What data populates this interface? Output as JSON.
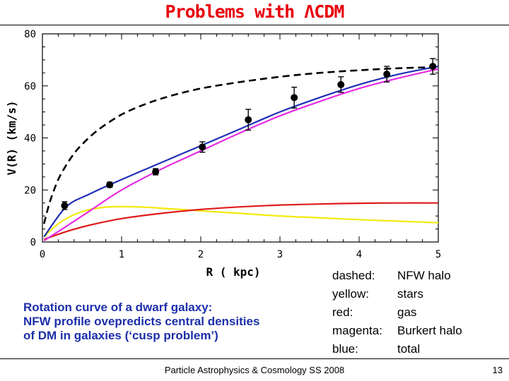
{
  "slide": {
    "title": "Problems with ΛCDM",
    "caption": [
      "Rotation curve of a dwarf galaxy:",
      "NFW profile ovepredicts central densities",
      "of DM in galaxies (‘cusp problem’)"
    ],
    "legend": [
      {
        "key": "dashed:",
        "desc": "NFW halo"
      },
      {
        "key": "yellow:",
        "desc": "stars"
      },
      {
        "key": "red:",
        "desc": "gas"
      },
      {
        "key": "magenta:",
        "desc": "Burkert halo"
      },
      {
        "key": "blue:",
        "desc": "total"
      }
    ],
    "footer": "Particle Astrophysics & Cosmology SS 2008",
    "page_number": "13",
    "colors": {
      "title": "#e8000d",
      "caption": "#1c2fa8"
    }
  },
  "chart_data": {
    "type": "line",
    "title": "",
    "xlabel": "R ( kpc)",
    "ylabel": "V(R)  (km/s)",
    "xlim": [
      0,
      5
    ],
    "ylim": [
      0,
      80
    ],
    "xticks": [
      0,
      1,
      2,
      3,
      4,
      5
    ],
    "yticks": [
      0,
      20,
      40,
      60,
      80
    ],
    "points": {
      "name": "observed",
      "color": "#000000",
      "x": [
        0.28,
        0.85,
        1.43,
        2.02,
        2.6,
        3.18,
        3.77,
        4.35,
        4.93
      ],
      "y": [
        14,
        22,
        27,
        36.5,
        47,
        55.5,
        60.5,
        64.5,
        67.5
      ],
      "err": [
        1.5,
        1,
        1.2,
        2,
        4,
        4,
        3,
        3,
        3
      ]
    },
    "series": [
      {
        "name": "NFW halo",
        "color": "#000000",
        "dashed": true,
        "x": [
          0.02,
          0.1,
          0.2,
          0.3,
          0.4,
          0.5,
          0.7,
          1.0,
          1.3,
          1.6,
          2.0,
          2.5,
          3.0,
          3.5,
          4.0,
          4.5,
          5.0
        ],
        "y": [
          7,
          16,
          24,
          29.5,
          34,
          37.5,
          43,
          49,
          53,
          56,
          59,
          61.5,
          63.5,
          65,
          66,
          66.8,
          67.2
        ]
      },
      {
        "name": "stars",
        "color": "#f2ea0a",
        "dashed": false,
        "x": [
          0.02,
          0.2,
          0.4,
          0.6,
          0.8,
          1.0,
          1.2,
          1.5,
          2.0,
          2.5,
          3.0,
          3.5,
          4.0,
          4.5,
          5.0
        ],
        "y": [
          2,
          7,
          10.5,
          12.5,
          13.4,
          13.6,
          13.5,
          13,
          12,
          11,
          10,
          9.3,
          8.6,
          8,
          7.4
        ]
      },
      {
        "name": "gas",
        "color": "#e01b1b",
        "dashed": false,
        "x": [
          0.02,
          0.3,
          0.6,
          1.0,
          1.5,
          2.0,
          2.5,
          3.0,
          3.5,
          4.0,
          4.5,
          5.0
        ],
        "y": [
          1,
          4,
          6.5,
          9,
          11,
          12.5,
          13.5,
          14.2,
          14.6,
          14.9,
          15,
          15
        ],
        "range": [
          0.02,
          5.0
        ]
      },
      {
        "name": "Burkert halo",
        "color": "#e62ce0",
        "dashed": false,
        "x": [
          0.02,
          0.3,
          0.6,
          1.0,
          1.5,
          2.0,
          2.5,
          3.0,
          3.5,
          4.0,
          4.5,
          5.0
        ],
        "y": [
          0.5,
          6,
          12,
          20,
          28,
          35,
          42,
          48.5,
          54,
          59,
          63,
          66.5
        ]
      },
      {
        "name": "total",
        "color": "#1f2fb5",
        "dashed": false,
        "x": [
          0.02,
          0.3,
          0.6,
          1.0,
          1.5,
          2.0,
          2.5,
          3.0,
          3.5,
          4.0,
          4.5,
          5.0
        ],
        "y": [
          2,
          13.5,
          18.5,
          24,
          30.5,
          37,
          43.5,
          50,
          55.5,
          60.5,
          64.5,
          67.5
        ]
      }
    ]
  }
}
